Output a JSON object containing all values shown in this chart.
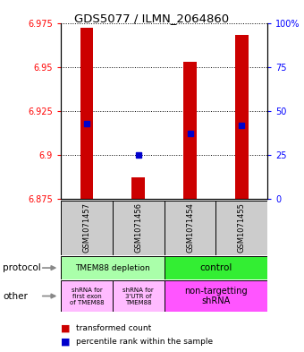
{
  "title": "GDS5077 / ILMN_2064860",
  "samples": [
    "GSM1071457",
    "GSM1071456",
    "GSM1071454",
    "GSM1071455"
  ],
  "bar_bottoms": [
    6.875,
    6.875,
    6.875,
    6.875
  ],
  "bar_tops": [
    6.972,
    6.887,
    6.953,
    6.968
  ],
  "blue_dots": [
    6.918,
    6.9,
    6.912,
    6.917
  ],
  "ylim": [
    6.875,
    6.975
  ],
  "yticks": [
    6.875,
    6.9,
    6.925,
    6.95,
    6.975
  ],
  "ytick_labels": [
    "6.875",
    "6.9",
    "6.925",
    "6.95",
    "6.975"
  ],
  "right_yticks": [
    0,
    25,
    50,
    75,
    100
  ],
  "right_ytick_labels": [
    "0",
    "25",
    "50",
    "75",
    "100%"
  ],
  "bar_color": "#cc0000",
  "dot_color": "#0000cc",
  "bar_width": 0.25,
  "protocol_labels": [
    "TMEM88 depletion",
    "control"
  ],
  "protocol_colors": [
    "#aaffaa",
    "#44ff44"
  ],
  "other_labels": [
    "shRNA for\nfirst exon\nof TMEM88",
    "shRNA for\n3'UTR of\nTMEM88",
    "non-targetting\nshRNA"
  ],
  "other_colors_light": "#ffbbff",
  "other_color_bright": "#ff55ff",
  "legend_red": "transformed count",
  "legend_blue": "percentile rank within the sample"
}
